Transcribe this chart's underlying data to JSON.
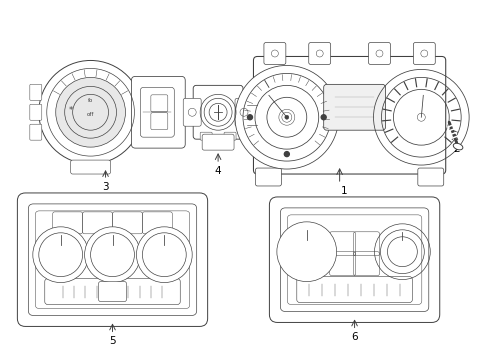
{
  "background_color": "#ffffff",
  "line_color": "#404040",
  "line_width": 0.7,
  "fig_w": 4.89,
  "fig_h": 3.6,
  "dpi": 100
}
